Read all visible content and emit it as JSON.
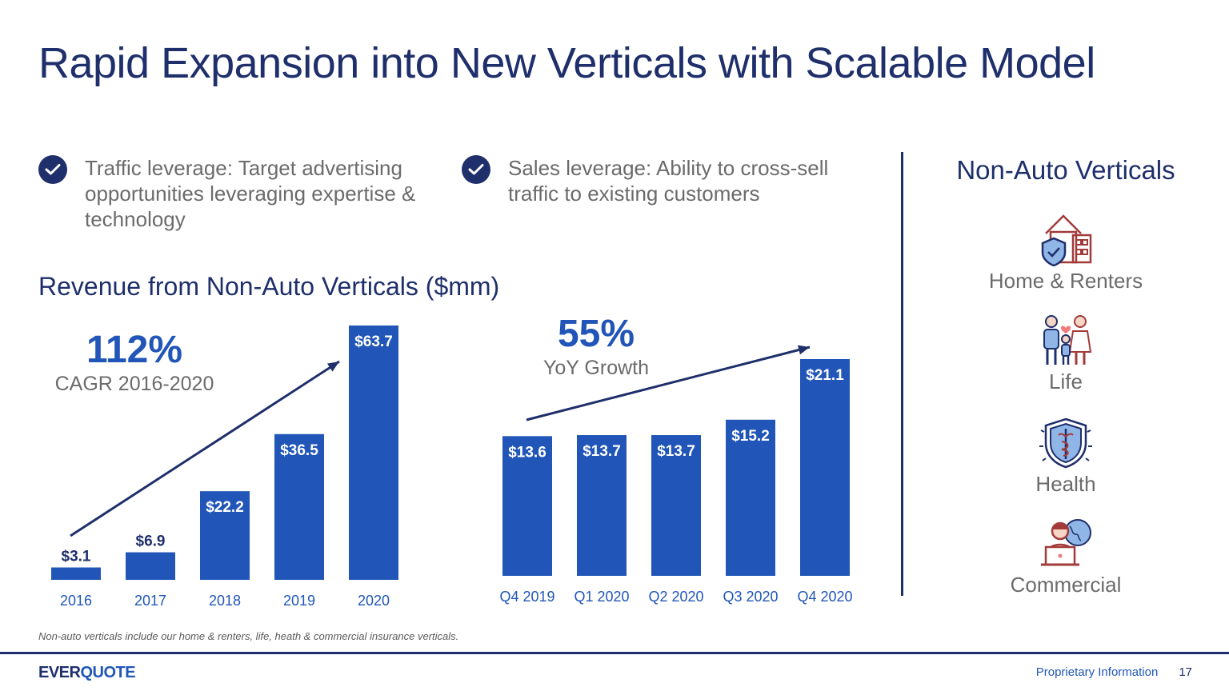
{
  "slide": {
    "title": "Rapid Expansion into New Verticals with Scalable Model",
    "bullets": [
      {
        "icon": "check-icon",
        "text": "Traffic leverage: Target advertising opportunities leveraging expertise & technology"
      },
      {
        "icon": "check-icon",
        "text": "Sales leverage: Ability to cross-sell traffic to existing customers"
      }
    ],
    "section_title": "Revenue from Non-Auto Verticals ($mm)",
    "cagr": {
      "value": "112%",
      "label": "CAGR 2016-2020"
    },
    "yoy": {
      "value": "55%",
      "label": "YoY Growth"
    },
    "footnote": "Non-auto verticals include our home & renters, life, heath & commercial insurance verticals.",
    "footer": {
      "logo_a": "EVER",
      "logo_b": "QUOTE",
      "proprietary": "Proprietary Information",
      "page": "17"
    },
    "colors": {
      "bar": "#2156b8",
      "navy": "#1e2f6b",
      "gray_text": "#6b6b6b",
      "icon_red": "#a33a3a",
      "icon_blue": "#8fb6e6"
    }
  },
  "verticals": {
    "title": "Non-Auto Verticals",
    "items": [
      {
        "label": "Home & Renters",
        "icon": "house-shield-icon"
      },
      {
        "label": "Life",
        "icon": "family-icon"
      },
      {
        "label": "Health",
        "icon": "caduceus-shield-icon"
      },
      {
        "label": "Commercial",
        "icon": "laptop-globe-icon"
      }
    ]
  },
  "chart_data": [
    {
      "type": "bar",
      "categories": [
        "2016",
        "2017",
        "2018",
        "2019",
        "2020"
      ],
      "values": [
        3.1,
        6.9,
        22.2,
        36.5,
        63.7
      ],
      "labels": [
        "$3.1",
        "$6.9",
        "$22.2",
        "$36.5",
        "$63.7"
      ],
      "ylim": [
        0,
        63.7
      ],
      "grid": false,
      "annotation": "112% CAGR 2016-2020"
    },
    {
      "type": "bar",
      "categories": [
        "Q4 2019",
        "Q1 2020",
        "Q2 2020",
        "Q3 2020",
        "Q4 2020"
      ],
      "values": [
        13.6,
        13.7,
        13.7,
        15.2,
        21.1
      ],
      "labels": [
        "$13.6",
        "$13.7",
        "$13.7",
        "$15.2",
        "$21.1"
      ],
      "ylim": [
        0,
        21.1
      ],
      "grid": false,
      "annotation": "55% YoY Growth"
    }
  ]
}
